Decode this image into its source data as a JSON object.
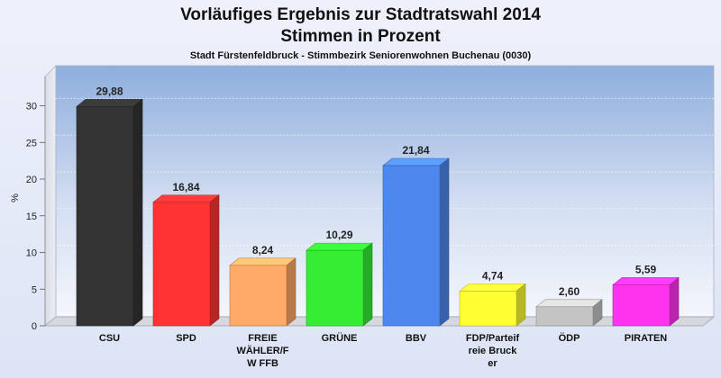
{
  "header": {
    "title_line1": "Vorläufiges Ergebnis zur Stadtratswahl 2014",
    "title_line2": "Stimmen in Prozent",
    "subtitle": "Stadt Fürstenfeldbruck - Stimmbezirk Seniorenwohnen Buchenau (0030)"
  },
  "chart_data": {
    "type": "bar",
    "title": "Vorläufiges Ergebnis zur Stadtratswahl 2014 / Stimmen in Prozent",
    "subtitle": "Stadt Fürstenfeldbruck - Stimmbezirk Seniorenwohnen Buchenau (0030)",
    "xlabel": "",
    "ylabel": "%",
    "ylim": [
      0,
      35
    ],
    "yticks": [
      0,
      5,
      10,
      15,
      20,
      25,
      30
    ],
    "grid": true,
    "categories": [
      "CSU",
      "SPD",
      "FREIE WÄHLER/F W FFB",
      "GRÜNE",
      "BBV",
      "FDP/Parteif reie Bruck er",
      "ÖDP",
      "PIRATEN"
    ],
    "category_label_lines": [
      [
        "CSU"
      ],
      [
        "SPD"
      ],
      [
        "FREIE",
        "WÄHLER/F",
        "W FFB"
      ],
      [
        "GRÜNE"
      ],
      [
        "BBV"
      ],
      [
        "FDP/Parteif",
        "reie Bruck",
        "er"
      ],
      [
        "ÖDP"
      ],
      [
        "PIRATEN"
      ]
    ],
    "values": [
      29.88,
      16.84,
      8.24,
      10.29,
      21.84,
      4.74,
      2.6,
      5.59
    ],
    "value_labels": [
      "29,88",
      "16,84",
      "8,24",
      "10,29",
      "21,84",
      "4,74",
      "2,60",
      "5,59"
    ],
    "colors": [
      "#333333",
      "#ff3333",
      "#ffaa66",
      "#33ee33",
      "#4d88ee",
      "#ffff33",
      "#c4c4c4",
      "#ff33ee"
    ]
  }
}
